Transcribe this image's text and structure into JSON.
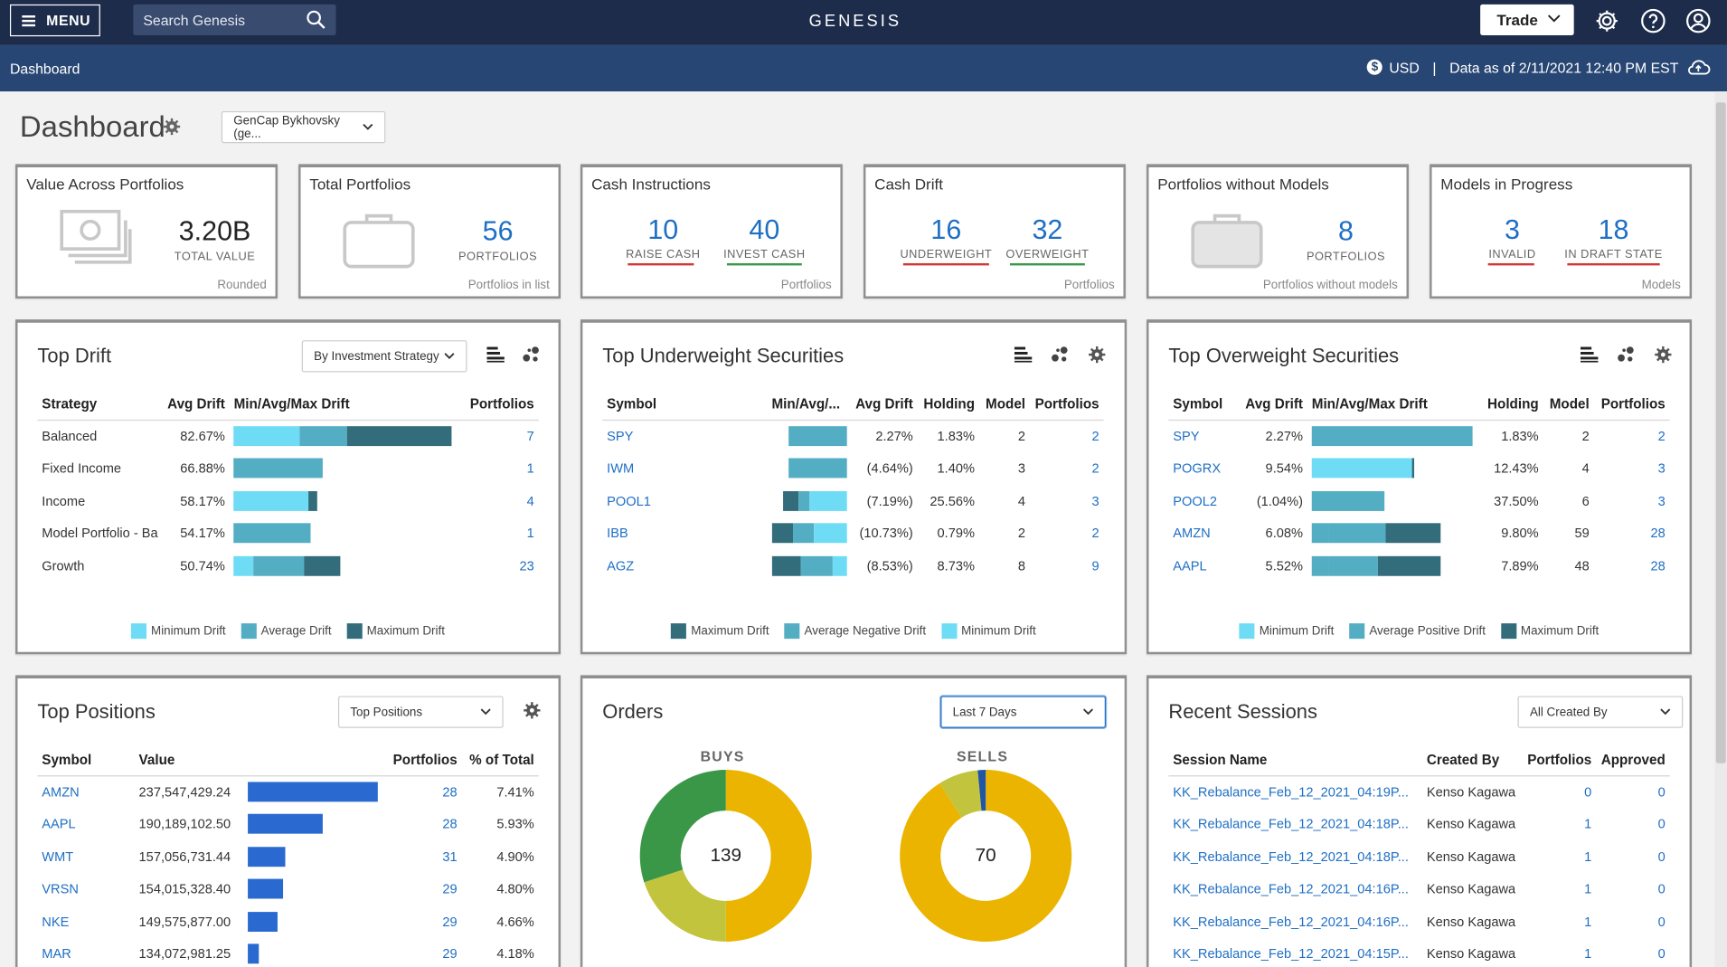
{
  "header": {
    "menu_label": "MENU",
    "search_placeholder": "Search Genesis",
    "brand": "GENESIS",
    "trade_label": "Trade"
  },
  "subheader": {
    "breadcrumb": "Dashboard",
    "currency": "USD",
    "data_as_of": "Data as of 2/11/2021 12:40 PM EST"
  },
  "page": {
    "title": "Dashboard",
    "account_select": "GenCap Bykhovsky (ge..."
  },
  "kpis": {
    "value_across": {
      "title": "Value Across Portfolios",
      "value": "3.20B",
      "label": "TOTAL VALUE",
      "footer": "Rounded"
    },
    "total_portfolios": {
      "title": "Total Portfolios",
      "value": "56",
      "label": "PORTFOLIOS",
      "footer": "Portfolios in list"
    },
    "cash_instructions": {
      "title": "Cash Instructions",
      "value1": "10",
      "label1": "RAISE CASH",
      "value2": "40",
      "label2": "INVEST CASH",
      "footer": "Portfolios"
    },
    "cash_drift": {
      "title": "Cash Drift",
      "value1": "16",
      "label1": "UNDERWEIGHT",
      "value2": "32",
      "label2": "OVERWEIGHT",
      "footer": "Portfolios"
    },
    "without_models": {
      "title": "Portfolios without Models",
      "value": "8",
      "label": "PORTFOLIOS",
      "footer": "Portfolios without models"
    },
    "models_progress": {
      "title": "Models in Progress",
      "value1": "3",
      "label1": "INVALID",
      "value2": "18",
      "label2": "IN DRAFT STATE",
      "footer": "Models"
    }
  },
  "colors": {
    "min_drift": "#6fdcf5",
    "avg_drift": "#54aec3",
    "max_drift": "#336c7a",
    "accent_link": "#1f6fc5",
    "red_underline": "#d23a3a",
    "green_underline": "#3a9a4a",
    "buys_green": "#3b9748",
    "buys_light": "#c3c43e",
    "gold": "#ebb400",
    "sells_blue": "#2255a4",
    "position_bar": "#2a6ad0"
  },
  "top_drift": {
    "title": "Top Drift",
    "filter": "By Investment Strategy",
    "columns": [
      "Strategy",
      "Avg Drift",
      "Min/Avg/Max Drift",
      "Portfolios"
    ],
    "rows": [
      {
        "strategy": "Balanced",
        "avg": "82.67%",
        "min": 0.3,
        "mid": 0.52,
        "max": 1.0,
        "portfolios": "7"
      },
      {
        "strategy": "Fixed Income",
        "avg": "66.88%",
        "min": 0.0,
        "mid": 0.0,
        "max": 0.41,
        "portfolios": "1"
      },
      {
        "strategy": "Income",
        "avg": "58.17%",
        "min": 0.34,
        "mid": 0.0,
        "max": 0.38,
        "portfolios": "4"
      },
      {
        "strategy": "Model Portfolio - Ba",
        "avg": "54.17%",
        "min": 0.0,
        "mid": 0.0,
        "max": 0.35,
        "portfolios": "1"
      },
      {
        "strategy": "Growth",
        "avg": "50.74%",
        "min": 0.09,
        "mid": 0.32,
        "max": 0.49,
        "portfolios": "23"
      }
    ],
    "legend": [
      "Minimum Drift",
      "Average Drift",
      "Maximum Drift"
    ]
  },
  "top_underweight": {
    "title": "Top Underweight Securities",
    "columns": [
      "Symbol",
      "Min/Avg/...",
      "Avg Drift",
      "Holding",
      "Model",
      "Portfolios"
    ],
    "rows": [
      {
        "symbol": "SPY",
        "avg": "2.27%",
        "holding": "1.83%",
        "model": "2",
        "portfolios": "2",
        "a": 0.0,
        "b": 0.0,
        "c": 0.78
      },
      {
        "symbol": "IWM",
        "avg": "(4.64%)",
        "holding": "1.40%",
        "model": "3",
        "portfolios": "2",
        "a": 0.0,
        "b": 0.0,
        "c": 0.78
      },
      {
        "symbol": "POOL1",
        "avg": "(7.19%)",
        "holding": "25.56%",
        "model": "4",
        "portfolios": "3",
        "a": 0.21,
        "b": 0.14,
        "c": 0.5
      },
      {
        "symbol": "IBB",
        "avg": "(10.73%)",
        "holding": "0.79%",
        "model": "2",
        "portfolios": "2",
        "a": 0.28,
        "b": 0.28,
        "c": 0.44
      },
      {
        "symbol": "AGZ",
        "avg": "(8.53%)",
        "holding": "8.73%",
        "model": "8",
        "portfolios": "9",
        "a": 0.39,
        "b": 0.42,
        "c": 0.19
      }
    ],
    "legend": [
      "Maximum Drift",
      "Average Negative Drift",
      "Minimum Drift"
    ]
  },
  "top_overweight": {
    "title": "Top Overweight Securities",
    "columns": [
      "Symbol",
      "Avg Drift",
      "Min/Avg/Max Drift",
      "Holding",
      "Model",
      "Portfolios"
    ],
    "rows": [
      {
        "symbol": "SPY",
        "avg": "2.27%",
        "holding": "1.83%",
        "model": "2",
        "portfolios": "2",
        "a": 0.0,
        "b": 1.0,
        "c": 0.0
      },
      {
        "symbol": "POGRX",
        "avg": "9.54%",
        "holding": "12.43%",
        "model": "4",
        "portfolios": "3",
        "a": 0.62,
        "b": 0.0,
        "c": 0.02
      },
      {
        "symbol": "POOL2",
        "avg": "(1.04%)",
        "holding": "37.50%",
        "model": "6",
        "portfolios": "3",
        "a": 0.0,
        "b": 0.45,
        "c": 0.0
      },
      {
        "symbol": "AMZN",
        "avg": "6.08%",
        "holding": "9.80%",
        "model": "59",
        "portfolios": "28",
        "a": 0.1,
        "b": 0.36,
        "c": 0.34
      },
      {
        "symbol": "AAPL",
        "avg": "5.52%",
        "holding": "7.89%",
        "model": "48",
        "portfolios": "28",
        "a": 0.1,
        "b": 0.31,
        "c": 0.39
      }
    ],
    "legend": [
      "Minimum Drift",
      "Average Positive Drift",
      "Maximum Drift"
    ]
  },
  "top_positions": {
    "title": "Top Positions",
    "filter": "Top Positions",
    "columns": [
      "Symbol",
      "Value",
      "Portfolios",
      "% of Total"
    ],
    "rows": [
      {
        "symbol": "AMZN",
        "value": "237,547,429.24",
        "portfolios": "28",
        "pct": "7.41%",
        "bar": 1.0
      },
      {
        "symbol": "AAPL",
        "value": "190,189,102.50",
        "portfolios": "28",
        "pct": "5.93%",
        "bar": 0.58
      },
      {
        "symbol": "WMT",
        "value": "157,056,731.44",
        "portfolios": "31",
        "pct": "4.90%",
        "bar": 0.29
      },
      {
        "symbol": "VRSN",
        "value": "154,015,328.40",
        "portfolios": "29",
        "pct": "4.80%",
        "bar": 0.27
      },
      {
        "symbol": "NKE",
        "value": "149,575,877.00",
        "portfolios": "29",
        "pct": "4.66%",
        "bar": 0.23
      },
      {
        "symbol": "MAR",
        "value": "134,072,981.25",
        "portfolios": "29",
        "pct": "4.18%",
        "bar": 0.09
      }
    ]
  },
  "orders": {
    "title": "Orders",
    "filter": "Last 7 Days",
    "buys": {
      "label": "BUYS",
      "total": "139",
      "slices": [
        0.5,
        0.2,
        0.3
      ]
    },
    "sells": {
      "label": "SELLS",
      "total": "70",
      "slices": [
        0.91,
        0.075,
        0.015
      ]
    }
  },
  "recent_sessions": {
    "title": "Recent Sessions",
    "filter": "All Created By",
    "columns": [
      "Session Name",
      "Created By",
      "Portfolios",
      "Approved"
    ],
    "rows": [
      {
        "name": "KK_Rebalance_Feb_12_2021_04:19P...",
        "by": "Kenso Kagawa",
        "portfolios": "0",
        "approved": "0"
      },
      {
        "name": "KK_Rebalance_Feb_12_2021_04:18P...",
        "by": "Kenso Kagawa",
        "portfolios": "1",
        "approved": "0"
      },
      {
        "name": "KK_Rebalance_Feb_12_2021_04:18P...",
        "by": "Kenso Kagawa",
        "portfolios": "1",
        "approved": "0"
      },
      {
        "name": "KK_Rebalance_Feb_12_2021_04:16P...",
        "by": "Kenso Kagawa",
        "portfolios": "1",
        "approved": "0"
      },
      {
        "name": "KK_Rebalance_Feb_12_2021_04:16P...",
        "by": "Kenso Kagawa",
        "portfolios": "1",
        "approved": "0"
      },
      {
        "name": "KK_Rebalance_Feb_12_2021_04:15P...",
        "by": "Kenso Kagawa",
        "portfolios": "1",
        "approved": "0"
      }
    ]
  }
}
